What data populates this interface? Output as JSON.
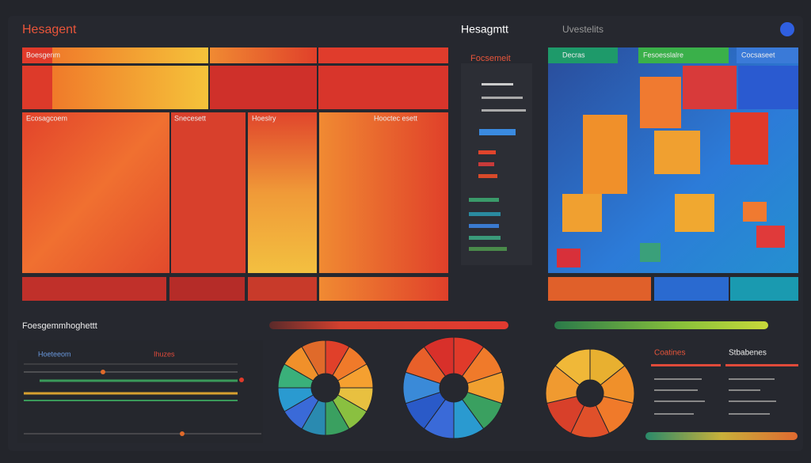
{
  "header": {
    "title": "Hesagent",
    "center": "Hesagmtt",
    "right": "Uvestelits"
  },
  "heatmap": {
    "labels": [
      "Boesgenm",
      "Hoeslry",
      "Snecesett",
      "Ecosagcoem",
      "Hooctec esett"
    ]
  },
  "sidebar": {
    "title": "Focsemeit"
  },
  "board": {
    "labels": [
      "Decras",
      "Fesoesslalre",
      "Cocsaseet"
    ]
  },
  "bottom": {
    "title": "Foesgemmhoghettt",
    "legend": [
      "Hoeteeom",
      "Ihuzes"
    ],
    "lists": [
      "Coatines",
      "Stbabenes"
    ]
  }
}
